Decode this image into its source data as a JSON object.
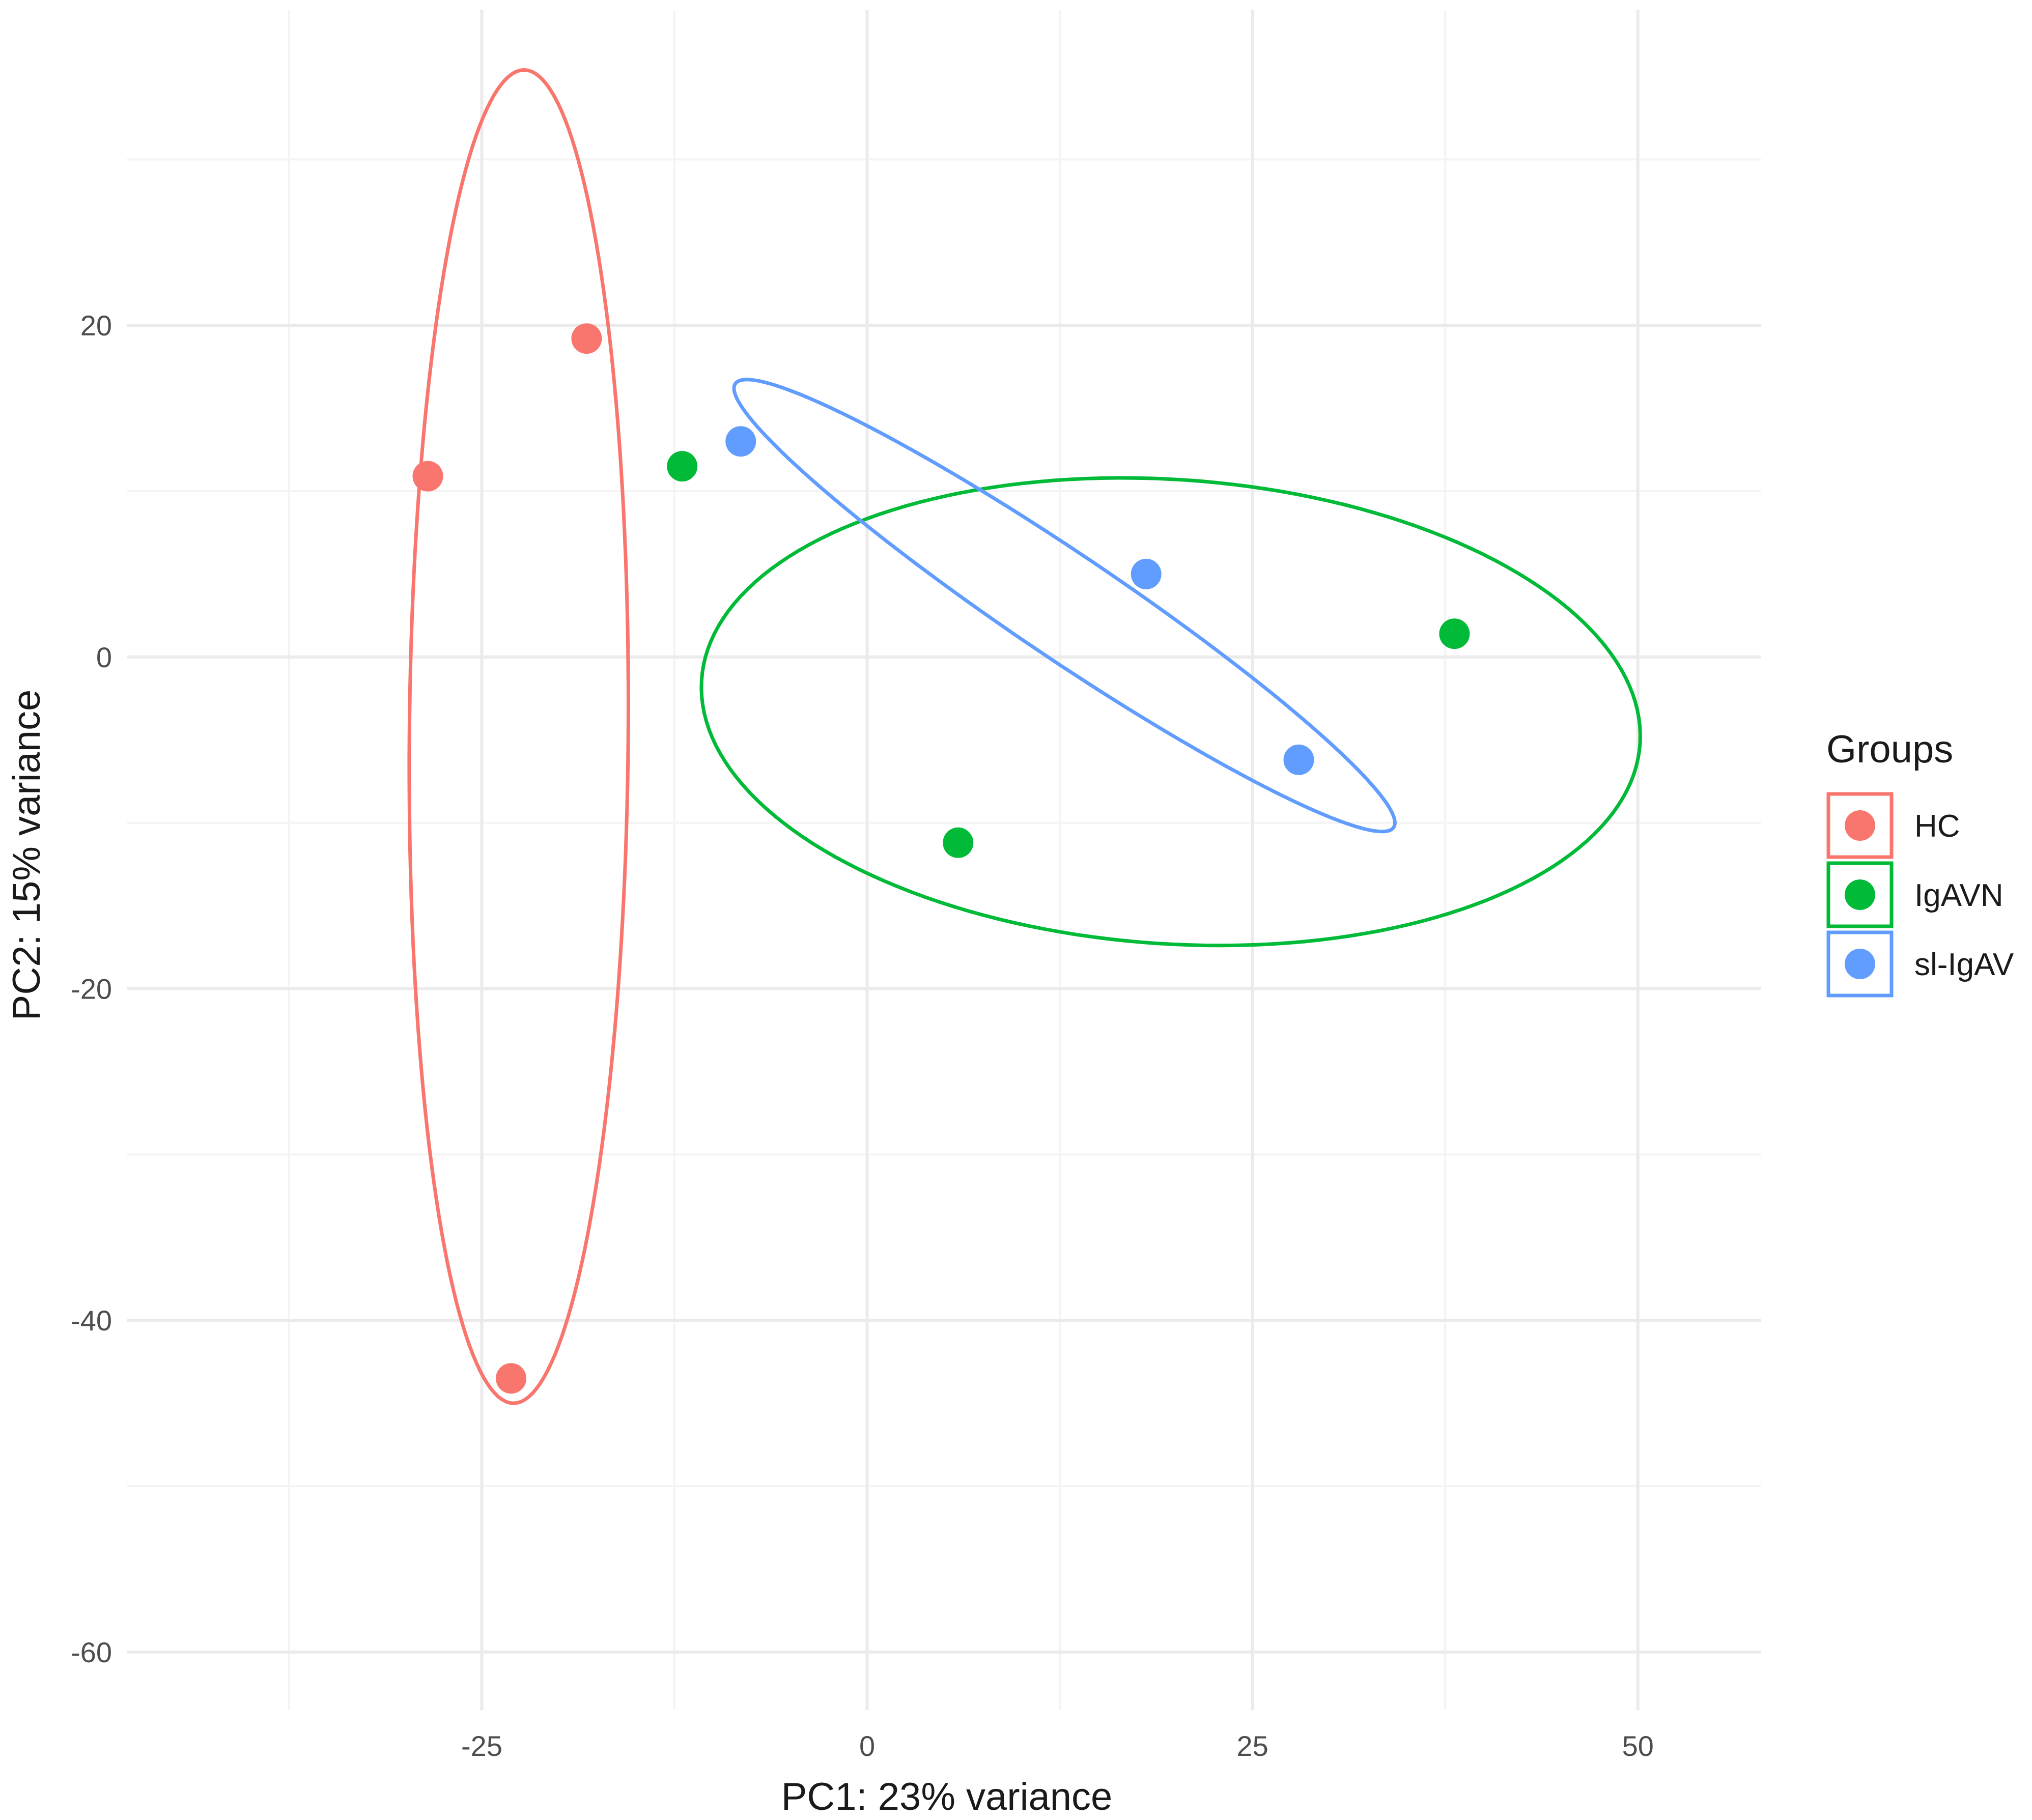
{
  "chart_data": {
    "type": "scatter",
    "xlabel": "PC1: 23% variance",
    "ylabel": "PC2: 15% variance",
    "xlim": [
      -48,
      58
    ],
    "ylim": [
      -63.5,
      39
    ],
    "x_ticks": [
      -25,
      0,
      25,
      50
    ],
    "y_ticks": [
      20,
      0,
      -20,
      -40,
      -60
    ],
    "grid": true,
    "legend": {
      "title": "Groups",
      "position": "right"
    },
    "series": [
      {
        "name": "HC",
        "color": "#F8766D",
        "points": [
          {
            "x": -28.5,
            "y": 10.9
          },
          {
            "x": -18.2,
            "y": 19.2
          },
          {
            "x": -23.1,
            "y": -43.5
          }
        ],
        "ellipse": {
          "cx": -22.6,
          "cy": -4.8,
          "rx": 7.1,
          "ry": 40.2,
          "angle_deg": -0.5
        }
      },
      {
        "name": "IgAVN",
        "color": "#00BA38",
        "points": [
          {
            "x": -12.0,
            "y": 11.5
          },
          {
            "x": 5.9,
            "y": -11.2
          },
          {
            "x": 38.1,
            "y": 1.4
          }
        ],
        "ellipse": {
          "cx": 19.7,
          "cy": -3.3,
          "rx": 30.5,
          "ry": 14.0,
          "angle_deg": -3.5
        }
      },
      {
        "name": "sl-IgAV",
        "color": "#619CFF",
        "points": [
          {
            "x": -8.2,
            "y": 13.0
          },
          {
            "x": 18.1,
            "y": 5.0
          },
          {
            "x": 28.0,
            "y": -6.2
          }
        ],
        "ellipse": {
          "cx": 12.8,
          "cy": 3.1,
          "rx": 25.2,
          "ry": 3.2,
          "angle_deg": -32
        }
      }
    ]
  }
}
